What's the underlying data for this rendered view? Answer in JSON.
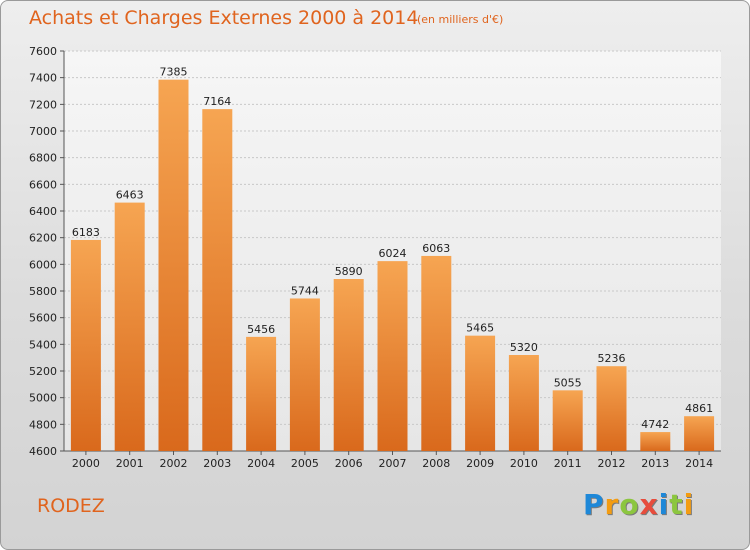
{
  "chart_data": {
    "type": "bar",
    "title": "Achats et Charges Externes 2000 à 2014",
    "unit_label": "(en milliers d'€)",
    "categories": [
      "2000",
      "2001",
      "2002",
      "2003",
      "2004",
      "2005",
      "2006",
      "2007",
      "2008",
      "2009",
      "2010",
      "2011",
      "2012",
      "2013",
      "2014"
    ],
    "values": [
      6183,
      6463,
      7385,
      7164,
      5456,
      5744,
      5890,
      6024,
      6063,
      5465,
      5320,
      5055,
      5236,
      4742,
      4861
    ],
    "ylim": [
      4600,
      7600
    ],
    "yticks": [
      4600,
      4800,
      5000,
      5200,
      5400,
      5600,
      5800,
      6000,
      6200,
      6400,
      6600,
      6800,
      7000,
      7200,
      7400,
      7600
    ],
    "xlabel": "",
    "ylabel": "",
    "grid": true,
    "bar_color_light": "#f6a552",
    "bar_color_dark": "#d9691c"
  },
  "place": "RODEZ",
  "logo": {
    "letters": [
      "P",
      "r",
      "o",
      "x",
      "i",
      "t",
      "i"
    ],
    "colors": [
      "#1e88d8",
      "#f39c12",
      "#8cc63f",
      "#e74c3c",
      "#1e88d8",
      "#8cc63f",
      "#f39c12"
    ]
  }
}
